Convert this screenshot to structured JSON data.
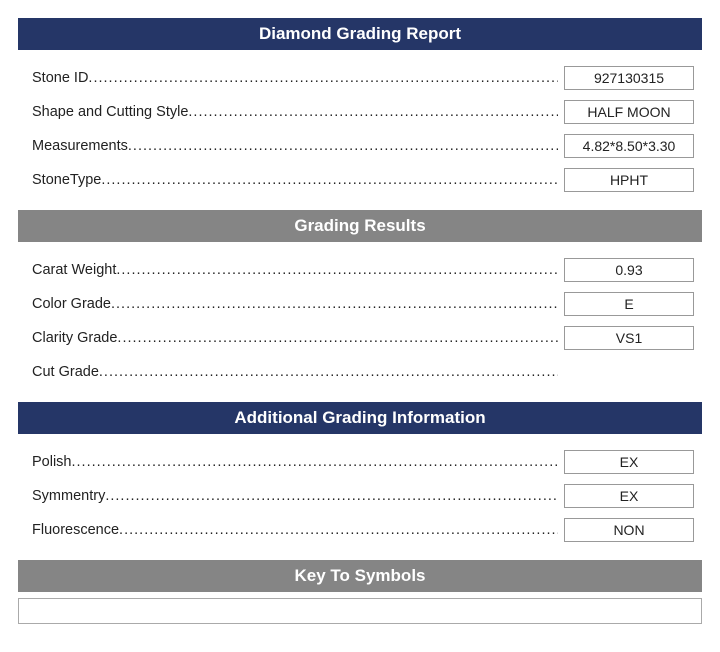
{
  "sections": {
    "main": {
      "title": "Diamond Grading Report",
      "header_color": "#253667",
      "rows": [
        {
          "label": "Stone ID",
          "value": "927130315"
        },
        {
          "label": "Shape and Cutting Style",
          "value": "HALF MOON"
        },
        {
          "label": "Measurements",
          "value": "4.82*8.50*3.30"
        },
        {
          "label": "StoneType",
          "value": "HPHT"
        }
      ]
    },
    "grading": {
      "title": "Grading Results",
      "header_color": "#858585",
      "rows": [
        {
          "label": "Carat Weight",
          "value": "0.93"
        },
        {
          "label": "Color Grade",
          "value": "E"
        },
        {
          "label": "Clarity Grade",
          "value": "VS1"
        },
        {
          "label": "Cut Grade",
          "value": ""
        }
      ]
    },
    "additional": {
      "title": "Additional Grading Information",
      "header_color": "#253667",
      "rows": [
        {
          "label": "Polish",
          "value": "EX"
        },
        {
          "label": "Symmentry",
          "value": "EX"
        },
        {
          "label": "Fluorescence",
          "value": "NON"
        }
      ]
    },
    "symbols": {
      "title": "Key To Symbols",
      "header_color": "#858585"
    }
  }
}
